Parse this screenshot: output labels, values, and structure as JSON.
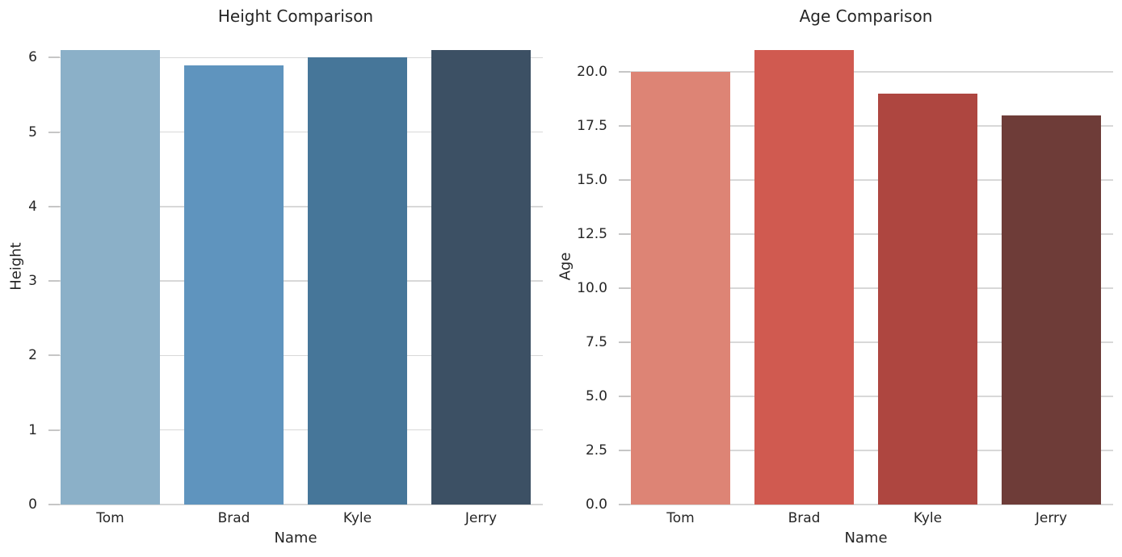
{
  "figure": {
    "background": "#ffffff",
    "grid_color": "#d8d8d8",
    "tick_mark_color": "#c6c6c6",
    "text_color": "#262626"
  },
  "chart_data": [
    {
      "type": "bar",
      "title": "Height Comparison",
      "xlabel": "Name",
      "ylabel": "Height",
      "categories": [
        "Tom",
        "Brad",
        "Kyle",
        "Jerry"
      ],
      "values": [
        6.1,
        5.9,
        6.0,
        6.1
      ],
      "bar_colors": [
        "#8bb0c8",
        "#5f94be",
        "#467699",
        "#3c5064"
      ],
      "ylim": [
        0,
        6.405
      ],
      "yticks": [
        0,
        1,
        2,
        3,
        4,
        5,
        6
      ],
      "ytick_labels": [
        "0",
        "1",
        "2",
        "3",
        "4",
        "5",
        "6"
      ],
      "bar_width_fraction": 0.8,
      "grid": true,
      "legend": null
    },
    {
      "type": "bar",
      "title": "Age Comparison",
      "xlabel": "Name",
      "ylabel": "Age",
      "categories": [
        "Tom",
        "Brad",
        "Kyle",
        "Jerry"
      ],
      "values": [
        20,
        21,
        19,
        18
      ],
      "bar_colors": [
        "#dd8475",
        "#d05a50",
        "#ae4640",
        "#6e3c38"
      ],
      "ylim": [
        0,
        22.05
      ],
      "yticks": [
        0,
        2.5,
        5,
        7.5,
        10,
        12.5,
        15,
        17.5,
        20
      ],
      "ytick_labels": [
        "0.0",
        "2.5",
        "5.0",
        "7.5",
        "10.0",
        "12.5",
        "15.0",
        "17.5",
        "20.0"
      ],
      "bar_width_fraction": 0.8,
      "grid": true,
      "legend": null
    }
  ]
}
